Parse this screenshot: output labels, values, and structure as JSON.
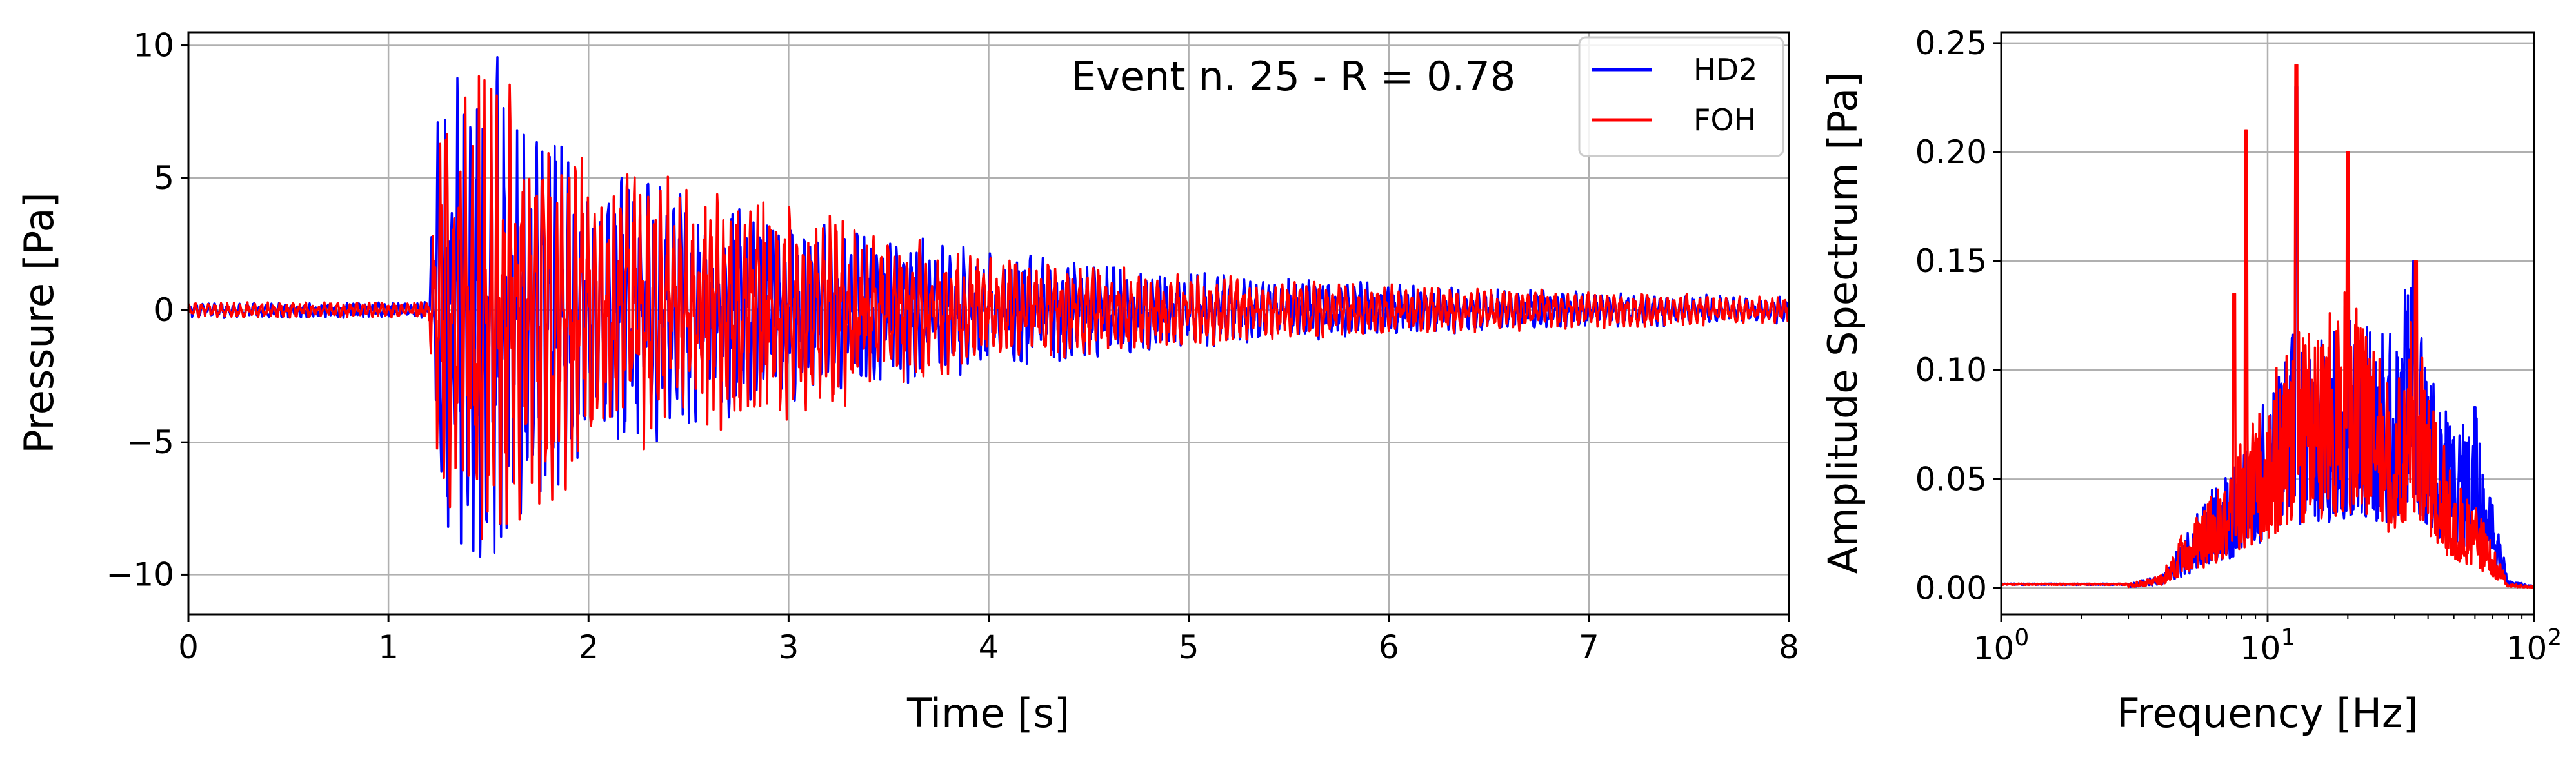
{
  "chart_data": [
    {
      "type": "line",
      "xlabel": "Time [s]",
      "ylabel": "Pressure [Pa]",
      "xlim": [
        0,
        8
      ],
      "ylim": [
        -11.5,
        10.5
      ],
      "xticks": [
        0,
        1,
        2,
        3,
        4,
        5,
        6,
        7,
        8
      ],
      "xtick_labels": [
        "0",
        "1",
        "2",
        "3",
        "4",
        "5",
        "6",
        "7",
        "8"
      ],
      "yticks": [
        -10,
        -5,
        0,
        5,
        10
      ],
      "ytick_labels": [
        "−10",
        "−5",
        "0",
        "5",
        "10"
      ],
      "grid": true,
      "annotation": "Event n. 25 - R = 0.78",
      "legend": {
        "position": "top-right",
        "entries": [
          "HD2",
          "FOH"
        ]
      },
      "series": [
        {
          "name": "HD2",
          "color": "#0000ff",
          "envelope": {
            "x": [
              0,
              1.2,
              1.25,
              1.5,
              2.0,
              2.5,
              3.0,
              3.5,
              4.0,
              5.0,
              6.0,
              7.0,
              8.0
            ],
            "amplitude": [
              0.3,
              0.3,
              8.5,
              10.3,
              6.0,
              4.5,
              3.5,
              3.0,
              2.3,
              1.5,
              1.0,
              0.7,
              0.5
            ]
          }
        },
        {
          "name": "FOH",
          "color": "#ff0000",
          "envelope": {
            "x": [
              0,
              1.2,
              1.25,
              1.5,
              2.0,
              2.5,
              3.0,
              3.5,
              4.0,
              5.0,
              6.0,
              7.0,
              8.0
            ],
            "amplitude": [
              0.3,
              0.3,
              7.5,
              9.3,
              6.2,
              5.0,
              4.5,
              3.0,
              2.2,
              1.4,
              1.0,
              0.7,
              0.5
            ]
          }
        }
      ]
    },
    {
      "type": "line",
      "xlabel": "Frequency [Hz]",
      "ylabel": "Amplitude Spectrum [Pa]",
      "xscale": "log",
      "xlim": [
        1,
        100
      ],
      "ylim": [
        -0.012,
        0.255
      ],
      "xticks": [
        1,
        10,
        100
      ],
      "xtick_labels": [
        {
          "base": "10",
          "exp": "0"
        },
        {
          "base": "10",
          "exp": "1"
        },
        {
          "base": "10",
          "exp": "2"
        }
      ],
      "yticks": [
        0.0,
        0.05,
        0.1,
        0.15,
        0.2,
        0.25
      ],
      "ytick_labels": [
        "0.00",
        "0.05",
        "0.10",
        "0.15",
        "0.20",
        "0.25"
      ],
      "grid": true,
      "series": [
        {
          "name": "HD2",
          "color": "#0000ff",
          "envelope": {
            "f": [
              1,
              3,
              4,
              5,
              6,
              8,
              10,
              12,
              15,
              20,
              25,
              30,
              35,
              40,
              50,
              60,
              70,
              80,
              100
            ],
            "amplitude": [
              0.002,
              0.002,
              0.006,
              0.025,
              0.045,
              0.06,
              0.09,
              0.12,
              0.11,
              0.13,
              0.12,
              0.12,
              0.155,
              0.11,
              0.07,
              0.085,
              0.04,
              0.004,
              0.001
            ]
          },
          "peaks": [
            {
              "f": 12.8,
              "a": 0.23
            },
            {
              "f": 35.5,
              "a": 0.15
            },
            {
              "f": 60,
              "a": 0.083
            }
          ]
        },
        {
          "name": "FOH",
          "color": "#ff0000",
          "envelope": {
            "f": [
              1,
              3,
              4,
              5,
              6,
              8,
              10,
              12,
              15,
              20,
              25,
              30,
              35,
              40,
              50,
              60,
              70,
              80,
              100
            ],
            "amplitude": [
              0.002,
              0.002,
              0.006,
              0.03,
              0.04,
              0.07,
              0.09,
              0.12,
              0.12,
              0.14,
              0.11,
              0.1,
              0.14,
              0.09,
              0.05,
              0.04,
              0.02,
              0.002,
              0.001
            ]
          },
          "peaks": [
            {
              "f": 8.3,
              "a": 0.21
            },
            {
              "f": 12.8,
              "a": 0.24
            },
            {
              "f": 20,
              "a": 0.2
            },
            {
              "f": 7.5,
              "a": 0.135
            },
            {
              "f": 36,
              "a": 0.15
            }
          ]
        }
      ]
    }
  ]
}
